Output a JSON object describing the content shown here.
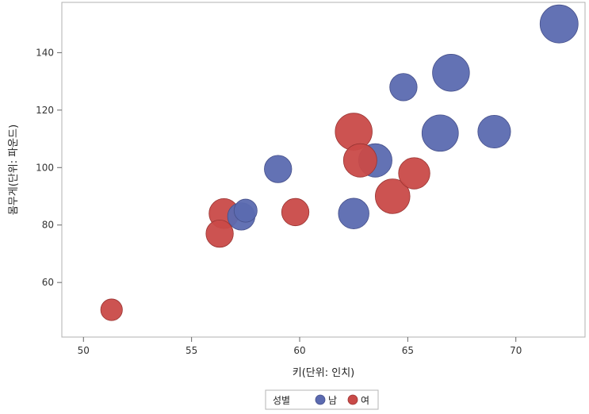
{
  "chart_data": {
    "type": "scatter",
    "subtype": "bubble",
    "title": "",
    "xlabel": "키(단위: 인치)",
    "ylabel": "몸무게(단위: 파운드)",
    "xlim": [
      49,
      73.2
    ],
    "ylim": [
      41,
      157.5
    ],
    "xticks": [
      50,
      55,
      60,
      65,
      70
    ],
    "yticks": [
      60,
      80,
      100,
      120,
      140
    ],
    "grid": false,
    "legend": {
      "title": "성별",
      "placement": "bottom-center",
      "entries": [
        {
          "name": "남",
          "color": "#5b6ab0"
        },
        {
          "name": "여",
          "color": "#c94a48"
        }
      ]
    },
    "series": [
      {
        "name": "남",
        "color": "#5b6ab0",
        "points": [
          {
            "x": 72.0,
            "y": 150.0,
            "size": 12.0
          },
          {
            "x": 67.0,
            "y": 133.0,
            "size": 11.0
          },
          {
            "x": 64.8,
            "y": 128.0,
            "size": 4.0
          },
          {
            "x": 66.5,
            "y": 112.0,
            "size": 10.5
          },
          {
            "x": 69.0,
            "y": 112.5,
            "size": 7.5
          },
          {
            "x": 63.5,
            "y": 102.5,
            "size": 8.0
          },
          {
            "x": 59.0,
            "y": 99.5,
            "size": 4.0
          },
          {
            "x": 62.5,
            "y": 84.0,
            "size": 6.0
          },
          {
            "x": 57.3,
            "y": 83.0,
            "size": 4.0
          },
          {
            "x": 57.5,
            "y": 85.0,
            "size": 2.0
          }
        ]
      },
      {
        "name": "여",
        "color": "#c94a48",
        "points": [
          {
            "x": 62.5,
            "y": 112.5,
            "size": 11.0
          },
          {
            "x": 62.8,
            "y": 102.5,
            "size": 8.0
          },
          {
            "x": 65.3,
            "y": 98.0,
            "size": 6.5
          },
          {
            "x": 64.3,
            "y": 90.0,
            "size": 9.0
          },
          {
            "x": 59.8,
            "y": 84.5,
            "size": 4.0
          },
          {
            "x": 56.5,
            "y": 84.0,
            "size": 5.5
          },
          {
            "x": 56.3,
            "y": 77.0,
            "size": 4.0
          },
          {
            "x": 51.3,
            "y": 50.5,
            "size": 1.5
          }
        ]
      }
    ]
  }
}
